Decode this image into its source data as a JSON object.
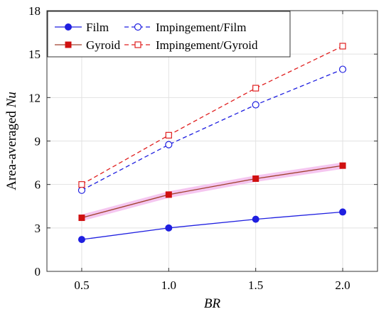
{
  "chart_data": {
    "type": "line",
    "xlabel_prefix": "",
    "xlabel": "BR",
    "ylabel_prefix": "Area-averaged ",
    "ylabel_italic": "Nu",
    "x": [
      0.5,
      1.0,
      1.5,
      2.0
    ],
    "xticks": [
      "0.5",
      "1.0",
      "1.5",
      "2.0"
    ],
    "xlim": [
      0.3,
      2.2
    ],
    "ylim": [
      0,
      18
    ],
    "yticks": [
      "0",
      "3",
      "6",
      "9",
      "12",
      "15",
      "18"
    ],
    "grid": true,
    "legend_position": "top-left",
    "series": [
      {
        "name": "Film",
        "values": [
          2.2,
          3.0,
          3.6,
          4.1
        ],
        "color": "#1f1fe0",
        "marker": "filled-circle",
        "line": "solid"
      },
      {
        "name": "Gyroid",
        "values": [
          3.7,
          5.3,
          6.4,
          7.3
        ],
        "color": "#a0412d",
        "marker_color": "#d01010",
        "marker": "filled-square",
        "line": "solid",
        "highlight": "#f5c6f0"
      },
      {
        "name": "Impingement/Film",
        "values": [
          5.6,
          8.75,
          11.5,
          13.95
        ],
        "color": "#1f1fe0",
        "marker": "open-circle",
        "line": "dashed"
      },
      {
        "name": "Impingement/Gyroid",
        "values": [
          6.0,
          9.4,
          12.65,
          15.55
        ],
        "color": "#e02020",
        "marker": "open-square",
        "line": "dashed"
      }
    ]
  }
}
